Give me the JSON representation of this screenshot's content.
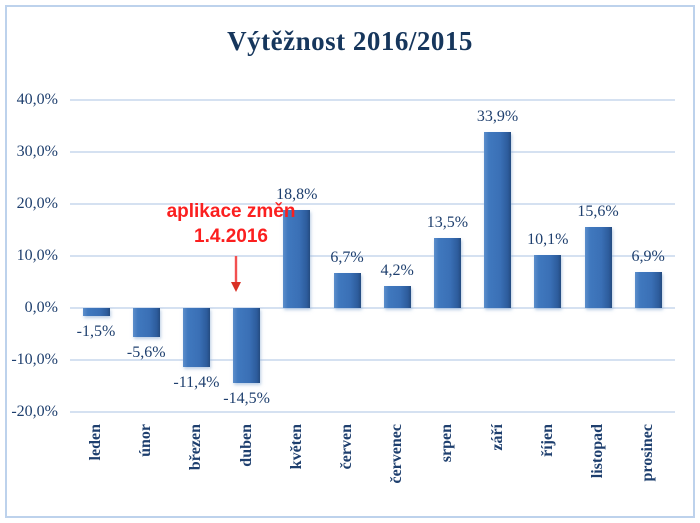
{
  "title": "Výtěžnost 2016/2015",
  "chart_data": {
    "type": "bar",
    "title": "Výtěžnost 2016/2015",
    "categories": [
      "leden",
      "únor",
      "březen",
      "duben",
      "květen",
      "červen",
      "červenec",
      "srpen",
      "září",
      "říjen",
      "listopad",
      "prosinec"
    ],
    "values": [
      -1.5,
      -5.6,
      -11.4,
      -14.5,
      18.8,
      6.7,
      4.2,
      13.5,
      33.9,
      10.1,
      15.6,
      6.9
    ],
    "value_labels": [
      "-1,5%",
      "-5,6%",
      "-11,4%",
      "-14,5%",
      "18,8%",
      "6,7%",
      "4,2%",
      "13,5%",
      "33,9%",
      "10,1%",
      "15,6%",
      "6,9%"
    ],
    "ylim": [
      -20,
      40
    ],
    "ytick_step": 10,
    "ytick_labels": [
      "40,0%",
      "30,0%",
      "20,0%",
      "10,0%",
      "0,0%",
      "-10,0%",
      "-20,0%"
    ],
    "grid": true,
    "legend": "none",
    "bar_color": "#3a70b6",
    "text_color": "#1e3f6e"
  },
  "annotation": {
    "line1": "aplikace změn",
    "line2": "1.4.2016",
    "arrow_icon": "down-arrow",
    "color": "#fb1f1f",
    "target_category": "duben"
  },
  "frame": {
    "border_color": "#bdd2ec",
    "background": "#ffffff"
  }
}
